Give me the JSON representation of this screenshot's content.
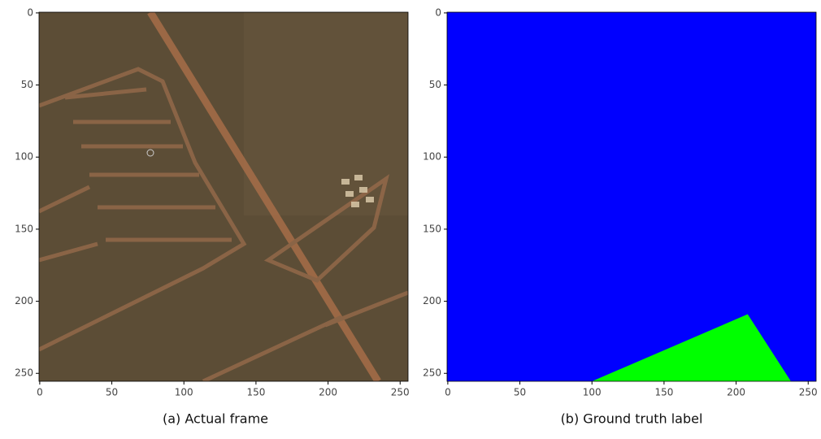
{
  "panels": [
    {
      "caption": "(a) Actual frame",
      "xlim": [
        -0.5,
        255.5
      ],
      "ylim": [
        255.5,
        -0.5
      ],
      "xticks": [
        0,
        50,
        100,
        150,
        200,
        250
      ],
      "yticks": [
        0,
        50,
        100,
        150,
        200,
        250
      ]
    },
    {
      "caption": "(b) Ground truth label",
      "xlim": [
        -0.5,
        255.5
      ],
      "ylim": [
        255.5,
        -0.5
      ],
      "xticks": [
        0,
        50,
        100,
        150,
        200,
        250
      ],
      "yticks": [
        0,
        50,
        100,
        150,
        200,
        250
      ],
      "background": "#0000ff",
      "region": {
        "color": "#00ff00",
        "x": [
          100,
          208,
          238
        ],
        "y": [
          256,
          209,
          256
        ]
      }
    }
  ]
}
